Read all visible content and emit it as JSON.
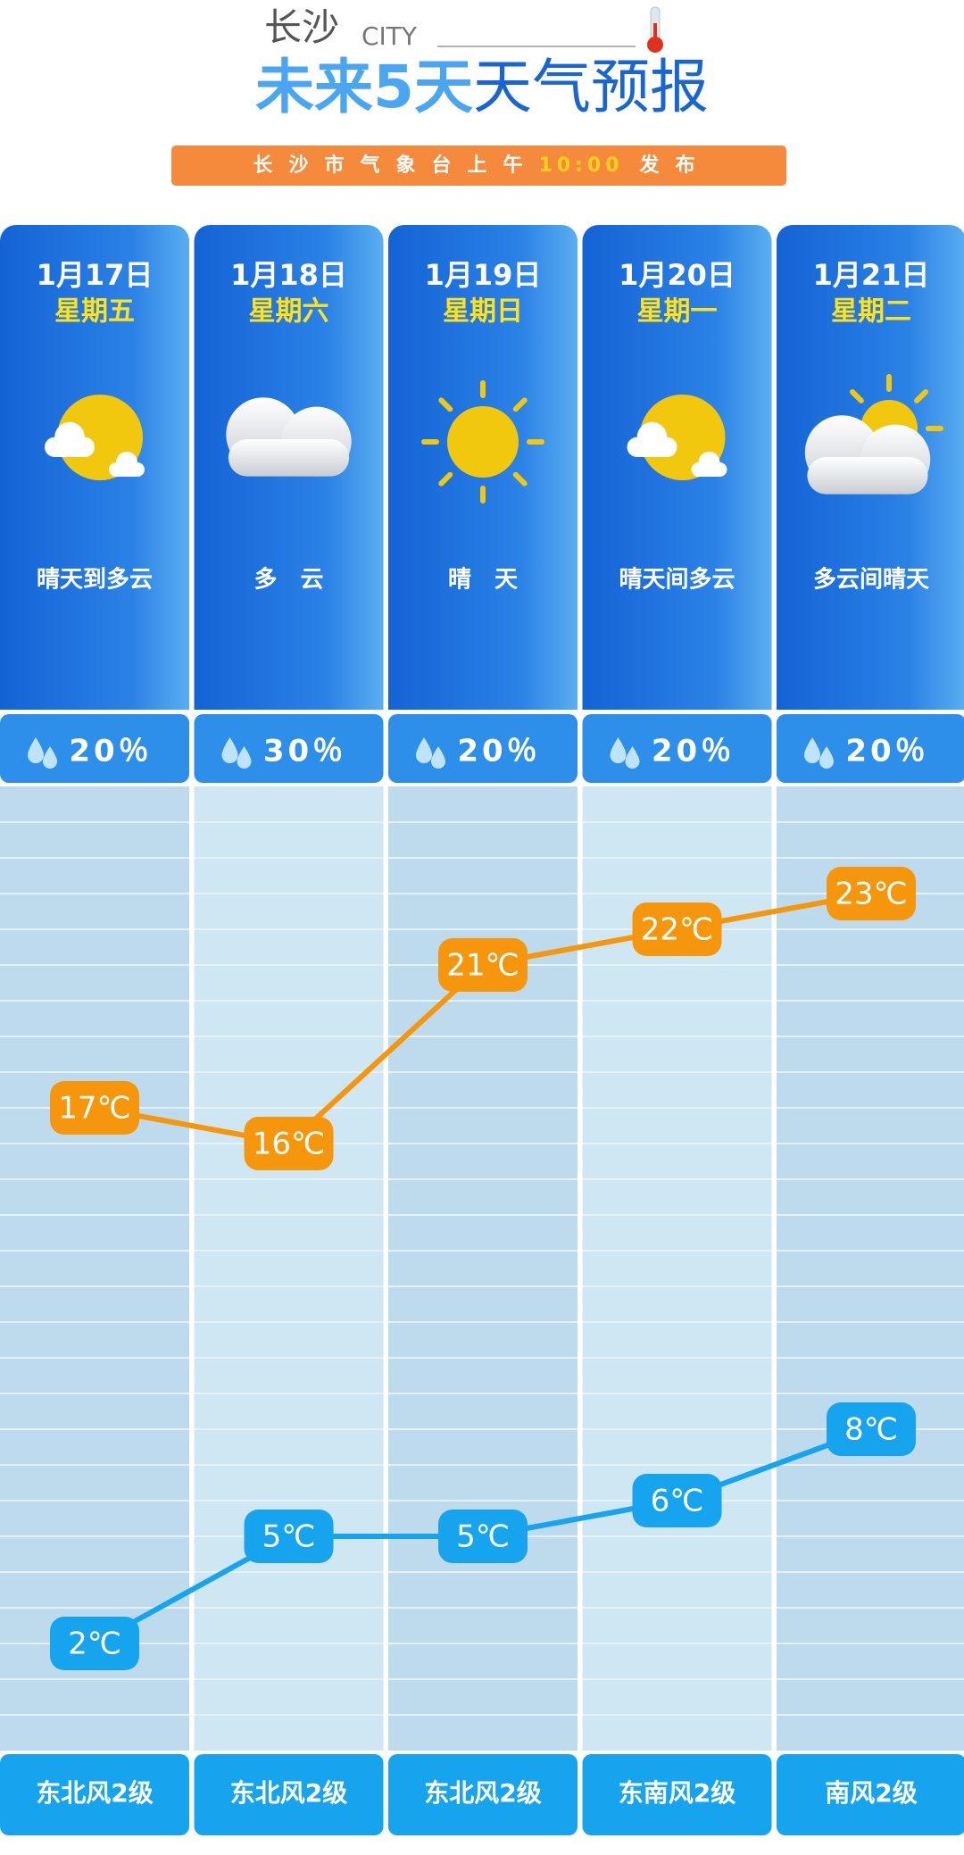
{
  "header": {
    "city": "长沙",
    "city_en": "CITY",
    "title_a": "未来5天",
    "title_b": "天气预报",
    "notice_a": "长沙市气象台上午",
    "notice_time": "10:00",
    "notice_b": "发布"
  },
  "chart_data": {
    "type": "line",
    "categories": [
      "1月17日",
      "1月18日",
      "1月19日",
      "1月20日",
      "1月21日"
    ],
    "weekdays": [
      "星期五",
      "星期六",
      "星期日",
      "星期一",
      "星期二"
    ],
    "conditions": [
      "晴天到多云",
      "多　云",
      "晴　天",
      "晴天间多云",
      "多云间晴天"
    ],
    "precipitation": [
      "20％",
      "30％",
      "20％",
      "20％",
      "20％"
    ],
    "winds": [
      "东北风2级",
      "东北风2级",
      "东北风2级",
      "东南风2级",
      "南风2级"
    ],
    "series": [
      {
        "color": "#f5960c",
        "values": [
          17,
          16,
          21,
          22,
          23
        ],
        "value_labels": [
          "17℃",
          "16℃",
          "21℃",
          "22℃",
          "23℃"
        ]
      },
      {
        "color": "#17a4ee",
        "values": [
          2,
          5,
          5,
          6,
          8
        ],
        "value_labels": [
          "2℃",
          "5℃",
          "5℃",
          "6℃",
          "8℃"
        ]
      }
    ],
    "ylim": [
      -1,
      26
    ]
  }
}
